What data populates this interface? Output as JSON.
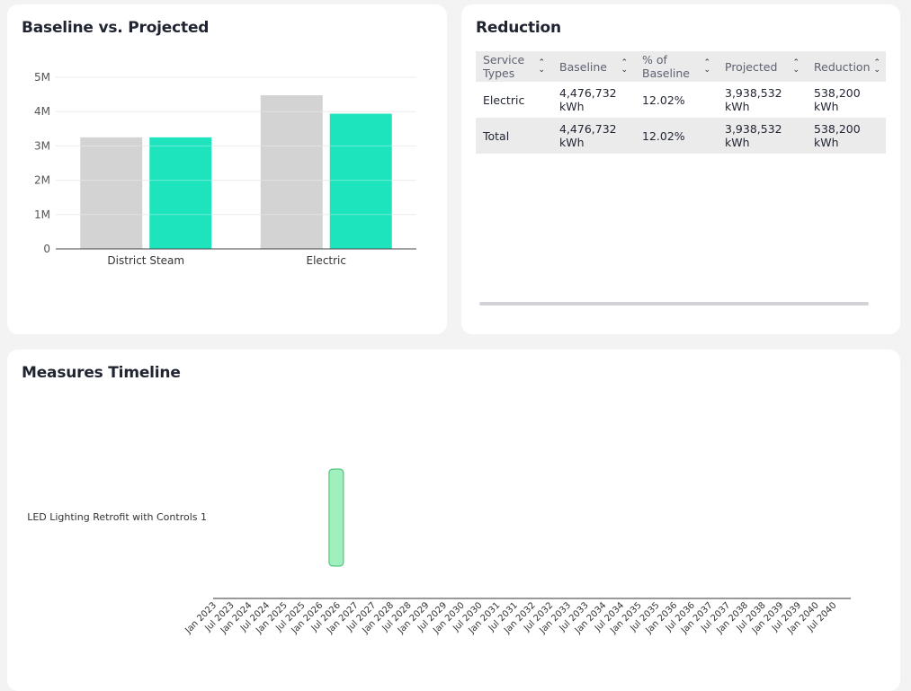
{
  "baseline_card": {
    "title": "Baseline vs. Projected"
  },
  "chart_data": {
    "type": "bar",
    "categories": [
      "District Steam",
      "Electric"
    ],
    "series": [
      {
        "name": "Baseline",
        "values": [
          3250000,
          4476732
        ],
        "color": "#d3d3d3"
      },
      {
        "name": "Projected",
        "values": [
          3250000,
          3938532
        ],
        "color": "#1de4bd"
      }
    ],
    "yticks": [
      {
        "value": 0,
        "label": "0"
      },
      {
        "value": 1000000,
        "label": "1M"
      },
      {
        "value": 2000000,
        "label": "2M"
      },
      {
        "value": 3000000,
        "label": "3M"
      },
      {
        "value": 4000000,
        "label": "4M"
      },
      {
        "value": 5000000,
        "label": "5M"
      }
    ],
    "ylim": [
      0,
      5000000
    ],
    "grid": true
  },
  "reduction_card": {
    "title": "Reduction",
    "columns": [
      "Service Types",
      "Baseline",
      "% of Baseline",
      "Projected",
      "Reduction"
    ],
    "rows": [
      [
        "Electric",
        "4,476,732 kWh",
        "12.02%",
        "3,938,532 kWh",
        "538,200 kWh"
      ],
      [
        "Total",
        "4,476,732 kWh",
        "12.02%",
        "3,938,532 kWh",
        "538,200 kWh"
      ]
    ],
    "sort_icon": "sort-updown-icon"
  },
  "timeline_card": {
    "title": "Measures Timeline",
    "measure_label": "LED Lighting Retrofit with Controls 1",
    "axis_labels": [
      "Jan 2023",
      "Jul 2023",
      "Jan 2024",
      "Jul 2024",
      "Jan 2025",
      "Jul 2025",
      "Jan 2026",
      "Jul 2026",
      "Jan 2027",
      "Jul 2027",
      "Jan 2028",
      "Jul 2028",
      "Jan 2029",
      "Jul 2029",
      "Jan 2030",
      "Jul 2030",
      "Jan 2031",
      "Jul 2031",
      "Jan 2032",
      "Jul 2032",
      "Jan 2033",
      "Jul 2033",
      "Jan 2034",
      "Jul 2034",
      "Jan 2035",
      "Jul 2035",
      "Jan 2036",
      "Jul 2036",
      "Jan 2037",
      "Jul 2037",
      "Jan 2038",
      "Jul 2038",
      "Jan 2039",
      "Jul 2039",
      "Jan 2040",
      "Jul 2040"
    ],
    "measure_date": "Jul 2026",
    "bar_color": "#a0f0bd",
    "bar_border": "#3dba6a"
  }
}
